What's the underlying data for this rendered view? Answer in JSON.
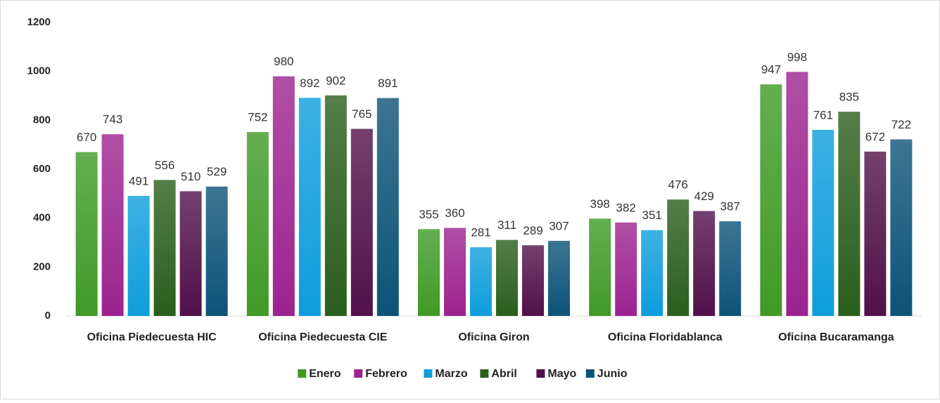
{
  "chart_data": {
    "type": "bar",
    "categories": [
      "Oficina Piedecuesta HIC",
      "Oficina Piedecuesta CIE",
      "Oficina Giron",
      "Oficina Floridablanca",
      "Oficina Bucaramanga"
    ],
    "series": [
      {
        "name": "Enero",
        "color": "#3f9a26",
        "values": [
          670,
          752,
          355,
          398,
          947
        ]
      },
      {
        "name": "Febrero",
        "color": "#9c2390",
        "values": [
          743,
          980,
          360,
          382,
          998
        ]
      },
      {
        "name": "Marzo",
        "color": "#0e9ddc",
        "values": [
          491,
          892,
          281,
          351,
          761
        ]
      },
      {
        "name": "Abril",
        "color": "#2a5e1c",
        "values": [
          556,
          902,
          311,
          476,
          835
        ]
      },
      {
        "name": "Mayo",
        "color": "#51104a",
        "values": [
          510,
          765,
          289,
          429,
          672
        ]
      },
      {
        "name": "Junio",
        "color": "#0c5378",
        "values": [
          529,
          891,
          307,
          387,
          722
        ]
      }
    ],
    "ylim": [
      0,
      1200
    ],
    "yticks": [
      0,
      200,
      400,
      600,
      800,
      1000,
      1200
    ],
    "grid": false,
    "legend": "bottom"
  }
}
